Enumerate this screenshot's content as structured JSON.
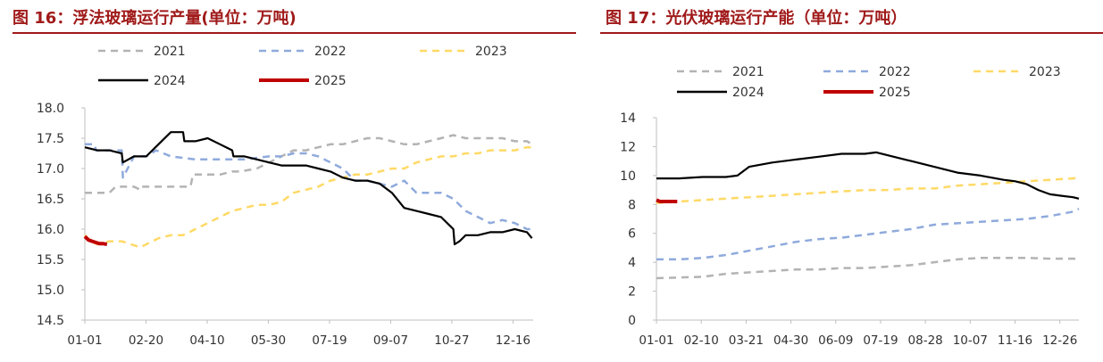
{
  "chart_data": [
    {
      "type": "line",
      "title": "图 16：浮法玻璃运行产量(单位：万吨)",
      "xlabel": "",
      "ylabel": "",
      "ylim": [
        14.5,
        18.0
      ],
      "yticks": [
        "18.0",
        "17.5",
        "17.0",
        "16.5",
        "16.0",
        "15.5",
        "15.0",
        "14.5"
      ],
      "ytick_values": [
        18.0,
        17.5,
        17.0,
        16.5,
        16.0,
        15.5,
        15.0,
        14.5
      ],
      "xticks": [
        "01-01",
        "02-20",
        "04-10",
        "05-30",
        "07-19",
        "09-07",
        "10-27",
        "12-16"
      ],
      "legend_position": "top",
      "grid": false,
      "series": [
        {
          "name": "2021",
          "color": "#b3b3b3",
          "dash": "8,6",
          "x": [
            0,
            20,
            25,
            26,
            40,
            45,
            46,
            50,
            60,
            70,
            86,
            88,
            100,
            110,
            120,
            126,
            140,
            150,
            160,
            170,
            180,
            190,
            200,
            210,
            220,
            230,
            240,
            250,
            260,
            270,
            280,
            290,
            300,
            310,
            320,
            330,
            340,
            350,
            360,
            364
          ],
          "y": [
            16.6,
            16.6,
            16.7,
            16.7,
            16.7,
            16.65,
            16.7,
            16.7,
            16.7,
            16.7,
            16.7,
            16.9,
            16.9,
            16.9,
            16.95,
            16.95,
            17.0,
            17.1,
            17.2,
            17.3,
            17.3,
            17.35,
            17.4,
            17.4,
            17.45,
            17.5,
            17.5,
            17.45,
            17.4,
            17.4,
            17.45,
            17.5,
            17.55,
            17.5,
            17.5,
            17.5,
            17.5,
            17.45,
            17.45,
            17.4
          ]
        },
        {
          "name": "2022",
          "color": "#8faadc",
          "dash": "8,6",
          "x": [
            0,
            8,
            9,
            30,
            31,
            40,
            50,
            58,
            70,
            90,
            110,
            130,
            150,
            160,
            170,
            180,
            190,
            200,
            210,
            220,
            230,
            240,
            250,
            260,
            270,
            280,
            290,
            300,
            310,
            320,
            330,
            340,
            350,
            360,
            364
          ],
          "y": [
            17.4,
            17.4,
            17.3,
            17.3,
            16.85,
            17.2,
            17.2,
            17.3,
            17.2,
            17.15,
            17.15,
            17.15,
            17.2,
            17.2,
            17.25,
            17.25,
            17.2,
            17.1,
            17.0,
            16.8,
            16.8,
            16.75,
            16.7,
            16.8,
            16.6,
            16.6,
            16.6,
            16.5,
            16.3,
            16.2,
            16.1,
            16.15,
            16.1,
            16.0,
            16.0
          ]
        },
        {
          "name": "2023",
          "color": "#ffd966",
          "dash": "8,6",
          "x": [
            0,
            5,
            10,
            20,
            30,
            45,
            50,
            60,
            70,
            80,
            90,
            100,
            110,
            120,
            130,
            140,
            150,
            160,
            170,
            180,
            190,
            200,
            210,
            220,
            230,
            240,
            250,
            260,
            270,
            280,
            290,
            300,
            310,
            320,
            330,
            340,
            350,
            360,
            364
          ],
          "y": [
            15.9,
            15.8,
            15.75,
            15.8,
            15.8,
            15.7,
            15.75,
            15.85,
            15.9,
            15.9,
            16.0,
            16.1,
            16.2,
            16.3,
            16.35,
            16.4,
            16.4,
            16.45,
            16.6,
            16.65,
            16.7,
            16.8,
            16.85,
            16.9,
            16.9,
            16.95,
            17.0,
            17.0,
            17.1,
            17.15,
            17.2,
            17.2,
            17.25,
            17.25,
            17.3,
            17.3,
            17.3,
            17.35,
            17.35
          ]
        },
        {
          "name": "2024",
          "color": "#000000",
          "dash": "",
          "x": [
            0,
            10,
            20,
            30,
            31,
            40,
            50,
            60,
            70,
            80,
            81,
            90,
            100,
            110,
            120,
            121,
            130,
            140,
            150,
            160,
            170,
            175,
            180,
            190,
            200,
            210,
            220,
            230,
            240,
            250,
            260,
            270,
            280,
            290,
            300,
            301,
            305,
            310,
            320,
            330,
            340,
            350,
            360,
            364
          ],
          "y": [
            17.35,
            17.3,
            17.3,
            17.25,
            17.1,
            17.2,
            17.2,
            17.4,
            17.6,
            17.6,
            17.45,
            17.45,
            17.5,
            17.4,
            17.3,
            17.2,
            17.2,
            17.15,
            17.1,
            17.05,
            17.05,
            17.05,
            17.05,
            17.0,
            16.95,
            16.85,
            16.8,
            16.8,
            16.75,
            16.6,
            16.35,
            16.3,
            16.25,
            16.2,
            16.0,
            15.75,
            15.8,
            15.9,
            15.9,
            15.95,
            15.95,
            16.0,
            15.95,
            15.85
          ]
        },
        {
          "name": "2025",
          "color": "#c00000",
          "dash": "",
          "x": [
            0,
            3,
            6,
            9,
            12,
            15,
            18
          ],
          "y": [
            15.88,
            15.82,
            15.8,
            15.78,
            15.76,
            15.76,
            15.75
          ]
        }
      ]
    },
    {
      "type": "line",
      "title": "图 17：光伏玻璃运行产能（单位：万吨）",
      "xlabel": "",
      "ylabel": "",
      "ylim": [
        0,
        14
      ],
      "yticks": [
        "14",
        "12",
        "10",
        "8",
        "6",
        "4",
        "2",
        "0"
      ],
      "ytick_values": [
        14,
        12,
        10,
        8,
        6,
        4,
        2,
        0
      ],
      "xticks": [
        "01-01",
        "02-10",
        "03-21",
        "04-30",
        "06-09",
        "07-19",
        "08-28",
        "10-07",
        "11-16",
        "12-26"
      ],
      "legend_position": "top",
      "grid": false,
      "series": [
        {
          "name": "2021",
          "color": "#b3b3b3",
          "dash": "8,6",
          "x": [
            0,
            20,
            40,
            60,
            80,
            100,
            120,
            140,
            160,
            180,
            200,
            220,
            240,
            260,
            280,
            300,
            320,
            340,
            360,
            365
          ],
          "y": [
            2.9,
            2.95,
            3.0,
            3.2,
            3.3,
            3.4,
            3.5,
            3.5,
            3.6,
            3.6,
            3.7,
            3.8,
            4.0,
            4.2,
            4.3,
            4.3,
            4.3,
            4.25,
            4.25,
            4.25
          ]
        },
        {
          "name": "2022",
          "color": "#8faadc",
          "dash": "8,6",
          "x": [
            0,
            20,
            40,
            60,
            80,
            100,
            120,
            140,
            160,
            180,
            200,
            220,
            240,
            260,
            280,
            300,
            320,
            340,
            360,
            365
          ],
          "y": [
            4.2,
            4.2,
            4.3,
            4.5,
            4.8,
            5.1,
            5.4,
            5.6,
            5.7,
            5.9,
            6.1,
            6.3,
            6.6,
            6.7,
            6.8,
            6.9,
            7.0,
            7.2,
            7.5,
            7.7
          ]
        },
        {
          "name": "2023",
          "color": "#ffd966",
          "dash": "8,6",
          "x": [
            0,
            20,
            40,
            60,
            80,
            100,
            120,
            140,
            160,
            180,
            200,
            220,
            240,
            260,
            280,
            300,
            320,
            340,
            360,
            365
          ],
          "y": [
            8.1,
            8.2,
            8.3,
            8.4,
            8.5,
            8.6,
            8.7,
            8.8,
            8.9,
            9.0,
            9.0,
            9.1,
            9.1,
            9.3,
            9.4,
            9.5,
            9.6,
            9.7,
            9.8,
            9.9
          ]
        },
        {
          "name": "2024",
          "color": "#000000",
          "dash": "",
          "x": [
            0,
            20,
            40,
            60,
            70,
            80,
            100,
            120,
            140,
            160,
            180,
            190,
            200,
            220,
            240,
            260,
            280,
            300,
            310,
            320,
            330,
            340,
            350,
            360,
            365
          ],
          "y": [
            9.8,
            9.8,
            9.9,
            9.9,
            10.0,
            10.6,
            10.9,
            11.1,
            11.3,
            11.5,
            11.5,
            11.6,
            11.4,
            11.0,
            10.6,
            10.2,
            10.0,
            9.7,
            9.6,
            9.4,
            9.0,
            8.7,
            8.6,
            8.5,
            8.4
          ]
        },
        {
          "name": "2025",
          "color": "#c00000",
          "dash": "",
          "x": [
            0,
            3,
            6,
            9,
            12,
            15,
            18
          ],
          "y": [
            8.3,
            8.2,
            8.2,
            8.2,
            8.2,
            8.2,
            8.2
          ]
        }
      ]
    }
  ]
}
